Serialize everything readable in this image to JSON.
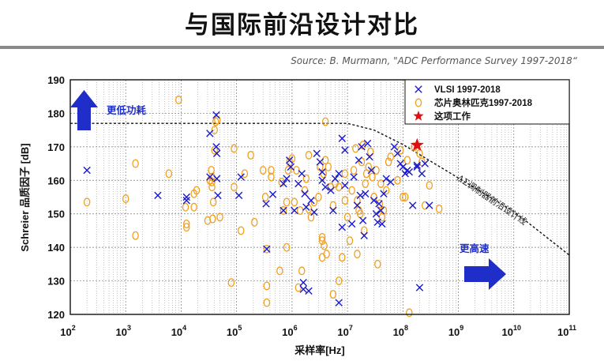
{
  "slide": {
    "title": "与国际前沿设计对比",
    "source": "Source: B. Murmann, \"ADC Performance Survey 1997-2018“"
  },
  "colors": {
    "vlsi": "#1a1acc",
    "chinese": "#f0a020",
    "this_work": "#e01010",
    "arrow": "#1f2ec8"
  },
  "chart_data": {
    "type": "scatter",
    "xlabel": "采样率[Hz]",
    "ylabel": "Schreier 品质因子 [dB]",
    "x_scale": "log",
    "xlim": [
      100,
      100000000000
    ],
    "ylim": [
      120,
      190
    ],
    "x_ticks": [
      {
        "base": "10",
        "exp": "2"
      },
      {
        "base": "10",
        "exp": "3"
      },
      {
        "base": "10",
        "exp": "4"
      },
      {
        "base": "10",
        "exp": "5"
      },
      {
        "base": "10",
        "exp": "6"
      },
      {
        "base": "10",
        "exp": "7"
      },
      {
        "base": "10",
        "exp": "8"
      },
      {
        "base": "10",
        "exp": "9"
      },
      {
        "base": "10",
        "exp": "10"
      },
      {
        "base": "10",
        "exp": "11"
      }
    ],
    "y_ticks": [
      "120",
      "130",
      "140",
      "150",
      "160",
      "170",
      "180",
      "190"
    ],
    "grid": true,
    "legend": [
      "VLSI 1997-2018",
      "芯片奥林匹克1997-2018",
      "这项工作"
    ],
    "legend_position": "top-right",
    "annotations": {
      "high_precision": "更低功耗",
      "high_speed": "更高速",
      "frontier": "ΔΣ调制器前沿设计线"
    },
    "frontier_line": {
      "x": [
        100,
        10000000,
        30000000,
        100000000,
        1000000000,
        10000000000,
        100000000000
      ],
      "y": [
        177,
        177,
        175,
        170.7,
        160.7,
        150.7,
        137.7
      ]
    },
    "series": [
      {
        "name": "VLSI 1997-2018",
        "marker": "x",
        "points": [
          [
            200,
            163
          ],
          [
            3800,
            155.5
          ],
          [
            12500,
            154
          ],
          [
            12500,
            155
          ],
          [
            33000,
            161
          ],
          [
            33000,
            174
          ],
          [
            43000,
            179.5
          ],
          [
            43000,
            170
          ],
          [
            44000,
            168
          ],
          [
            44000,
            160.5
          ],
          [
            46000,
            155.5
          ],
          [
            110000,
            155.5
          ],
          [
            120000,
            161
          ],
          [
            340000,
            153
          ],
          [
            350000,
            139.5
          ],
          [
            450000,
            155.8
          ],
          [
            700000,
            159
          ],
          [
            700000,
            151
          ],
          [
            800000,
            160.5
          ],
          [
            900000,
            166
          ],
          [
            950000,
            164
          ],
          [
            1100000,
            151
          ],
          [
            1300000,
            159
          ],
          [
            1500000,
            162
          ],
          [
            1600000,
            127.5
          ],
          [
            1600000,
            129.5
          ],
          [
            1700000,
            156
          ],
          [
            1800000,
            152
          ],
          [
            2000000,
            127
          ],
          [
            2200000,
            154
          ],
          [
            2500000,
            150.5
          ],
          [
            2800000,
            168
          ],
          [
            3200000,
            165.5
          ],
          [
            3500000,
            160
          ],
          [
            3500000,
            162.5
          ],
          [
            4000000,
            158
          ],
          [
            5000000,
            157
          ],
          [
            5500000,
            151
          ],
          [
            6000000,
            160.5
          ],
          [
            7000000,
            123.5
          ],
          [
            7000000,
            162
          ],
          [
            8000000,
            172.5
          ],
          [
            8000000,
            146
          ],
          [
            9000000,
            169
          ],
          [
            9000000,
            158.5
          ],
          [
            12000000,
            147
          ],
          [
            13000000,
            161
          ],
          [
            15000000,
            152.5
          ],
          [
            16000000,
            166
          ],
          [
            17000000,
            155.5
          ],
          [
            18000000,
            170
          ],
          [
            19000000,
            148
          ],
          [
            20000000,
            143.5
          ],
          [
            21000000,
            156
          ],
          [
            23000000,
            171
          ],
          [
            25000000,
            167
          ],
          [
            27000000,
            163
          ],
          [
            30000000,
            154
          ],
          [
            33000000,
            150
          ],
          [
            35000000,
            147.5
          ],
          [
            37000000,
            153
          ],
          [
            40000000,
            151
          ],
          [
            42000000,
            147
          ],
          [
            45000000,
            156
          ],
          [
            50000000,
            160.5
          ],
          [
            60000000,
            159.5
          ],
          [
            70000000,
            170
          ],
          [
            80000000,
            168
          ],
          [
            90000000,
            165
          ],
          [
            100000000,
            164
          ],
          [
            110000000,
            162
          ],
          [
            120000000,
            163
          ],
          [
            130000000,
            162.5
          ],
          [
            150000000,
            152.5
          ],
          [
            180000000,
            164
          ],
          [
            220000000,
            162
          ],
          [
            250000000,
            165
          ],
          [
            300000000,
            152.5
          ],
          [
            200000000,
            128
          ],
          [
            180000000,
            164.5
          ]
        ]
      },
      {
        "name": "芯片奥林匹克1997-2018",
        "marker": "o",
        "points": [
          [
            200,
            153.5
          ],
          [
            1000,
            154.5
          ],
          [
            1500,
            143.5
          ],
          [
            1500,
            165
          ],
          [
            6000,
            162
          ],
          [
            9000,
            184
          ],
          [
            12000,
            152
          ],
          [
            12500,
            147
          ],
          [
            12500,
            146
          ],
          [
            17000,
            156
          ],
          [
            17000,
            152
          ],
          [
            19000,
            157
          ],
          [
            30000,
            148
          ],
          [
            33000,
            160
          ],
          [
            35000,
            163
          ],
          [
            36000,
            161
          ],
          [
            36000,
            158
          ],
          [
            36000,
            159.5
          ],
          [
            37000,
            148.5
          ],
          [
            38000,
            153.5
          ],
          [
            40000,
            175
          ],
          [
            40000,
            169
          ],
          [
            42000,
            177.5
          ],
          [
            45000,
            178
          ],
          [
            50000,
            149
          ],
          [
            90000,
            169.5
          ],
          [
            90000,
            158
          ],
          [
            80000,
            129.5
          ],
          [
            120000,
            145
          ],
          [
            140000,
            162
          ],
          [
            180000,
            167.5
          ],
          [
            210000,
            147.5
          ],
          [
            300000,
            163
          ],
          [
            330000,
            155
          ],
          [
            350000,
            139.5
          ],
          [
            350000,
            128.5
          ],
          [
            350000,
            123.5
          ],
          [
            420000,
            163
          ],
          [
            420000,
            161
          ],
          [
            600000,
            133
          ],
          [
            650000,
            159.5
          ],
          [
            700000,
            151
          ],
          [
            800000,
            153.5
          ],
          [
            800000,
            140
          ],
          [
            850000,
            163
          ],
          [
            900000,
            165.5
          ],
          [
            1000000,
            166.5
          ],
          [
            1100000,
            153.5
          ],
          [
            1200000,
            163
          ],
          [
            1300000,
            128
          ],
          [
            1400000,
            151
          ],
          [
            1500000,
            133
          ],
          [
            1700000,
            157
          ],
          [
            1800000,
            160.5
          ],
          [
            2000000,
            167.5
          ],
          [
            2000000,
            151.5
          ],
          [
            2200000,
            149
          ],
          [
            2500000,
            153.5
          ],
          [
            3000000,
            155
          ],
          [
            3200000,
            164
          ],
          [
            3500000,
            137
          ],
          [
            3500000,
            142
          ],
          [
            3500000,
            143
          ],
          [
            3700000,
            162
          ],
          [
            3800000,
            140.5
          ],
          [
            4000000,
            177.5
          ],
          [
            4000000,
            166
          ],
          [
            4200000,
            138
          ],
          [
            4500000,
            164
          ],
          [
            5000000,
            158
          ],
          [
            5500000,
            126
          ],
          [
            5500000,
            152.5
          ],
          [
            6000000,
            159
          ],
          [
            7000000,
            130
          ],
          [
            7000000,
            158
          ],
          [
            8000000,
            137
          ],
          [
            9000000,
            154
          ],
          [
            9000000,
            162
          ],
          [
            10000000,
            149
          ],
          [
            11000000,
            142
          ],
          [
            12000000,
            157
          ],
          [
            13000000,
            163
          ],
          [
            14000000,
            169.5
          ],
          [
            15000000,
            154
          ],
          [
            15000000,
            138
          ],
          [
            16000000,
            151
          ],
          [
            17000000,
            150
          ],
          [
            18000000,
            165.5
          ],
          [
            19000000,
            170.5
          ],
          [
            20000000,
            145
          ],
          [
            21000000,
            159
          ],
          [
            22000000,
            162
          ],
          [
            24000000,
            164
          ],
          [
            26000000,
            168.5
          ],
          [
            28000000,
            161
          ],
          [
            30000000,
            155
          ],
          [
            33000000,
            163
          ],
          [
            35000000,
            135
          ],
          [
            38000000,
            153
          ],
          [
            40000000,
            159
          ],
          [
            42000000,
            149
          ],
          [
            45000000,
            151
          ],
          [
            50000000,
            157
          ],
          [
            55000000,
            165.5
          ],
          [
            60000000,
            167
          ],
          [
            80000000,
            160
          ],
          [
            90000000,
            169
          ],
          [
            100000000,
            155
          ],
          [
            110000000,
            155
          ],
          [
            130000000,
            120.5
          ],
          [
            200000000,
            168
          ],
          [
            250000000,
            152.5
          ],
          [
            300000000,
            158.5
          ],
          [
            450000000,
            151.5
          ],
          [
            120000000,
            166
          ],
          [
            160000000,
            170
          ],
          [
            220000000,
            165.5
          ]
        ]
      },
      {
        "name": "这项工作",
        "marker": "star",
        "points": [
          [
            180000000,
            170.5
          ]
        ]
      }
    ]
  }
}
